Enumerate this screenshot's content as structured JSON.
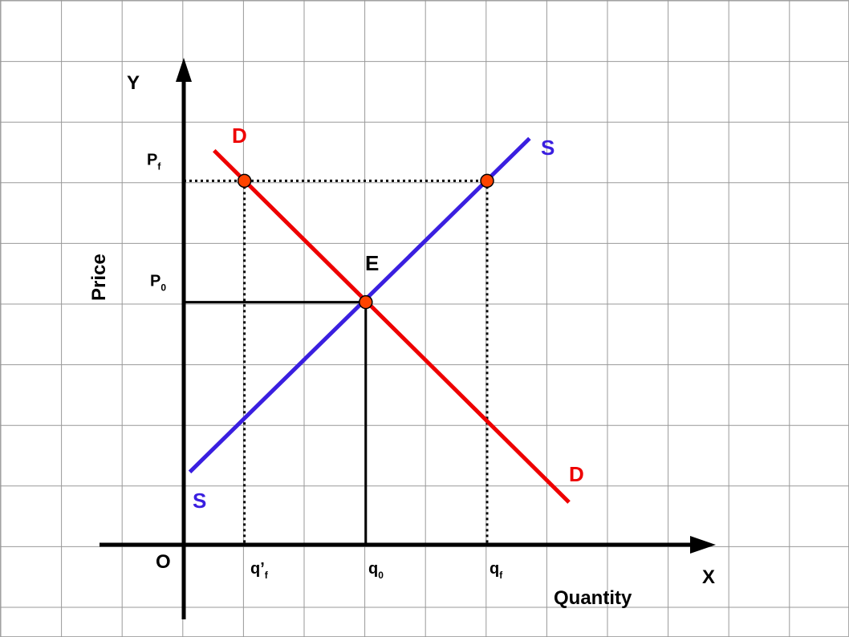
{
  "chart_data": {
    "type": "line",
    "title": "",
    "xlabel": "Quantity",
    "ylabel": "Price",
    "axis_letters": {
      "x": "X",
      "y": "Y",
      "origin": "O"
    },
    "grid": true,
    "xlim": [
      0,
      8.5
    ],
    "ylim": [
      0,
      8
    ],
    "price_levels": [
      {
        "id": "pf",
        "main": "P",
        "sub": "f",
        "value": 6,
        "style": "dotted"
      },
      {
        "id": "p0",
        "main": "P",
        "sub": "0",
        "value": 4,
        "style": "solid"
      }
    ],
    "quantity_levels": [
      {
        "id": "qpf",
        "main": "q’",
        "sub": "f",
        "value": 1,
        "style": "dotted"
      },
      {
        "id": "q0",
        "main": "q",
        "sub": "0",
        "value": 3,
        "style": "solid"
      },
      {
        "id": "qf",
        "main": "q",
        "sub": "f",
        "value": 5,
        "style": "dotted"
      }
    ],
    "series": [
      {
        "name": "D",
        "label_start": "D",
        "label_end": "D",
        "color": "#ee0000",
        "points": [
          [
            0.5,
            6.5
          ],
          [
            6.35,
            0.7
          ]
        ]
      },
      {
        "name": "S",
        "label_start": "S",
        "label_end": "S",
        "color": "#3a1fe0",
        "points": [
          [
            0.1,
            1.2
          ],
          [
            5.7,
            6.7
          ]
        ]
      }
    ],
    "equilibrium": {
      "label": "E",
      "x": 3,
      "y": 4
    },
    "markers": [
      {
        "x": 1,
        "y": 6
      },
      {
        "x": 5,
        "y": 6
      },
      {
        "x": 3,
        "y": 4
      }
    ],
    "marker_color": "#ff4400"
  }
}
